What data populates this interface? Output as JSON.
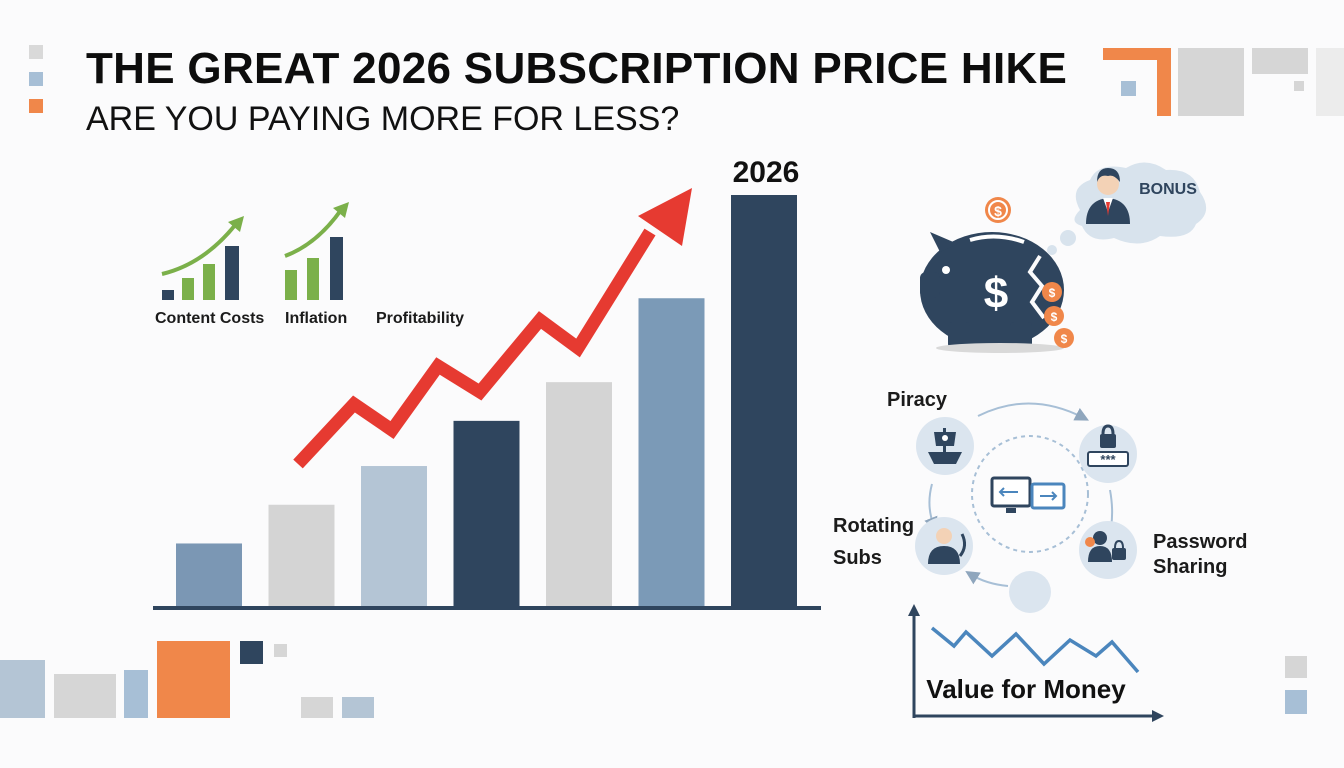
{
  "header": {
    "title": "THE GREAT 2026 SUBSCRIPTION PRICE HIKE",
    "subtitle": "ARE YOU PAYING MORE FOR LESS?"
  },
  "factors": [
    {
      "label": "Content Costs",
      "icon": "rising-bar-chart-icon"
    },
    {
      "label": "Inflation",
      "icon": "rising-bar-chart-icon"
    },
    {
      "label": "Profitability",
      "icon": ""
    }
  ],
  "chart_data": {
    "type": "bar",
    "categories": [
      "",
      "",
      "",
      "",
      "",
      "",
      "2026"
    ],
    "values": [
      1.0,
      1.6,
      2.2,
      2.9,
      3.5,
      4.8,
      6.4
    ],
    "highlight_label": "2026",
    "trend": "rising",
    "bar_colors": [
      "#7b97b4",
      "#d4d4d4",
      "#b4c5d5",
      "#2f455e",
      "#d4d4d4",
      "#7b9ab7",
      "#2f455e"
    ],
    "trend_color": "#e63a31"
  },
  "piggy": {
    "icon": "piggy-bank-icon",
    "symbol": "$",
    "bubble_text": "BONUS",
    "coin_symbol": "$"
  },
  "cycle": {
    "nodes": [
      {
        "label": "Piracy",
        "icon": "pirate-ship-icon"
      },
      {
        "label": "",
        "icon": "lock-password-icon",
        "code": "***"
      },
      {
        "label": "Password\nSharing",
        "icon": "shared-users-lock-icon"
      },
      {
        "label": "Rotating\nSubs",
        "icon": "user-rotate-icon"
      }
    ],
    "center_icon": "switching-screens-icon"
  },
  "value_chart": {
    "label": "Value for Money",
    "trend": "falling",
    "line_color": "#4b86bd"
  },
  "colors": {
    "dark": "#2f455e",
    "steel": "#7b97b4",
    "light_blue": "#b4c5d5",
    "gray": "#d4d4d4",
    "orange": "#f0874a",
    "red": "#e63a31",
    "green": "#7bb04a"
  }
}
